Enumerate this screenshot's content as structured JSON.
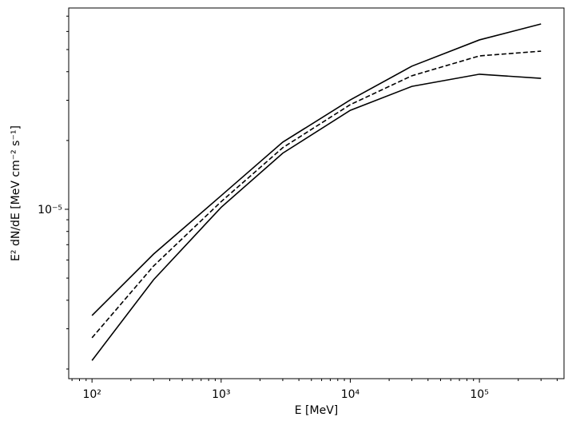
{
  "chart_data": {
    "type": "line",
    "xlabel": "E [MeV]",
    "ylabel": "E² dN/dE [MeV cm⁻² s⁻¹]",
    "xscale": "log",
    "yscale": "log",
    "x": [
      100,
      300,
      1000,
      3000,
      10000,
      30000,
      100000,
      300000
    ],
    "series": [
      {
        "color": "#000000",
        "dash": "solid",
        "values": [
          3.43e-06,
          6.37e-06,
          1.147e-05,
          1.967e-05,
          3.01e-05,
          4.23e-05,
          5.51e-05,
          6.47e-05
        ]
      },
      {
        "color": "#000000",
        "dash": "dashed",
        "values": [
          2.74e-06,
          5.65e-06,
          1.08e-05,
          1.86e-05,
          2.87e-05,
          3.84e-05,
          4.69e-05,
          4.92e-05
        ]
      },
      {
        "color": "#000000",
        "dash": "solid",
        "values": [
          2.18e-06,
          4.92e-06,
          1.02e-05,
          1.76e-05,
          2.71e-05,
          3.45e-05,
          3.9e-05,
          3.74e-05
        ]
      }
    ],
    "xlim": [
      66,
      452000
    ],
    "ylim": [
      1.815e-06,
      7.6e-05
    ],
    "xticks": [
      {
        "value": 100,
        "label": "10²"
      },
      {
        "value": 1000,
        "label": "10³"
      },
      {
        "value": 10000,
        "label": "10⁴"
      },
      {
        "value": 100000,
        "label": "10⁵"
      }
    ],
    "yticks": [
      {
        "value": 1e-05,
        "label": "10⁻⁵"
      }
    ],
    "xminorticks": [
      70,
      80,
      90,
      200,
      300,
      400,
      500,
      600,
      700,
      800,
      900,
      2000,
      3000,
      4000,
      5000,
      6000,
      7000,
      8000,
      9000,
      20000,
      30000,
      40000,
      50000,
      60000,
      70000,
      80000,
      90000,
      200000,
      300000,
      400000
    ],
    "yminorticks": [
      2e-06,
      3e-06,
      4e-06,
      5e-06,
      6e-06,
      7e-06,
      8e-06,
      9e-06,
      2e-05,
      3e-05,
      4e-05,
      5e-05,
      6e-05,
      7e-05
    ],
    "grid": false
  }
}
